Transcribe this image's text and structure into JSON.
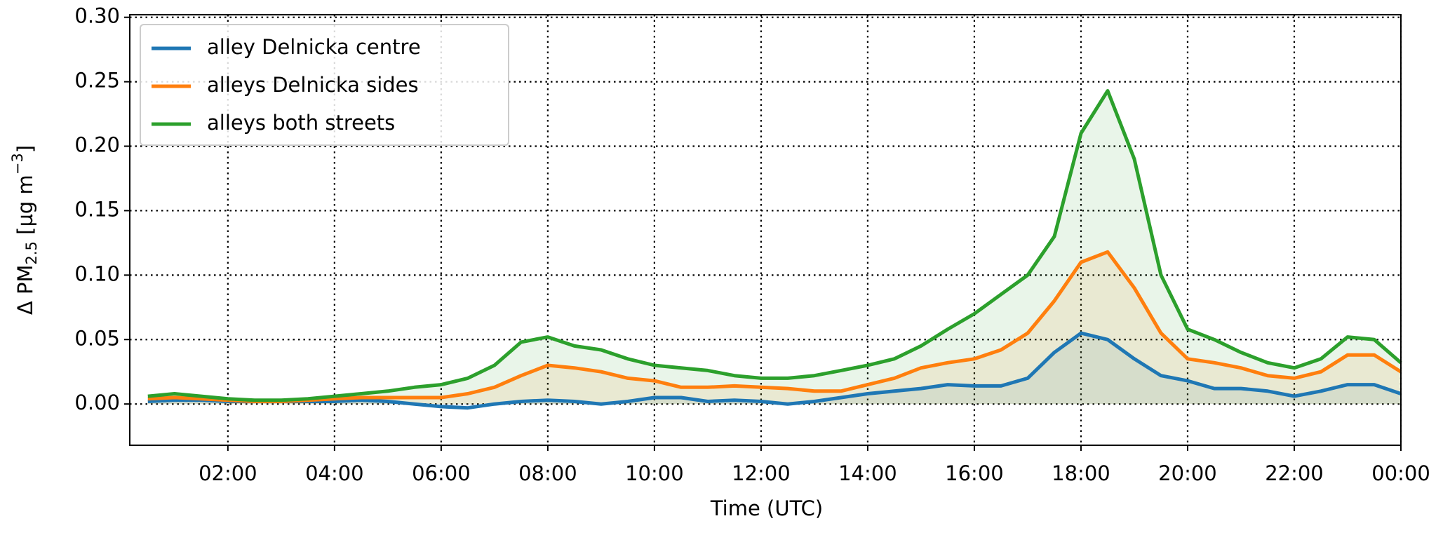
{
  "chart_data": {
    "type": "line",
    "xlabel": "Time (UTC)",
    "ylabel_parts": [
      "Δ PM",
      "2.5",
      " [µg m",
      "−3",
      "]"
    ],
    "x": [
      0.5,
      1,
      1.5,
      2,
      2.5,
      3,
      3.5,
      4,
      4.5,
      5,
      5.5,
      6,
      6.5,
      7,
      7.5,
      8,
      8.5,
      9,
      9.5,
      10,
      10.5,
      11,
      11.5,
      12,
      12.5,
      13,
      13.5,
      14,
      14.5,
      15,
      15.5,
      16,
      16.5,
      17,
      17.5,
      18,
      18.5,
      19,
      19.5,
      20,
      20.5,
      21,
      21.5,
      22,
      22.5,
      23,
      23.5,
      24
    ],
    "series": [
      {
        "name": "alley Delnicka centre",
        "color": "#1f77b4",
        "values": [
          0.002,
          0.003,
          0.003,
          0.002,
          0.002,
          0.002,
          0.002,
          0.002,
          0.003,
          0.002,
          0.0,
          -0.002,
          -0.003,
          0.0,
          0.002,
          0.003,
          0.002,
          0.0,
          0.002,
          0.005,
          0.005,
          0.002,
          0.003,
          0.002,
          0.0,
          0.002,
          0.005,
          0.008,
          0.01,
          0.012,
          0.015,
          0.014,
          0.014,
          0.02,
          0.04,
          0.055,
          0.05,
          0.035,
          0.022,
          0.018,
          0.012,
          0.012,
          0.01,
          0.006,
          0.01,
          0.015,
          0.015,
          0.008
        ]
      },
      {
        "name": "alleys Delnicka sides",
        "color": "#ff7f0e",
        "values": [
          0.004,
          0.005,
          0.004,
          0.003,
          0.002,
          0.002,
          0.003,
          0.004,
          0.005,
          0.005,
          0.005,
          0.005,
          0.008,
          0.013,
          0.022,
          0.03,
          0.028,
          0.025,
          0.02,
          0.018,
          0.013,
          0.013,
          0.014,
          0.013,
          0.012,
          0.01,
          0.01,
          0.015,
          0.02,
          0.028,
          0.032,
          0.035,
          0.042,
          0.055,
          0.08,
          0.11,
          0.118,
          0.09,
          0.055,
          0.035,
          0.032,
          0.028,
          0.022,
          0.02,
          0.025,
          0.038,
          0.038,
          0.025
        ]
      },
      {
        "name": "alleys both streets",
        "color": "#2ca02c",
        "values": [
          0.006,
          0.008,
          0.006,
          0.004,
          0.003,
          0.003,
          0.004,
          0.006,
          0.008,
          0.01,
          0.013,
          0.015,
          0.02,
          0.03,
          0.048,
          0.052,
          0.045,
          0.042,
          0.035,
          0.03,
          0.028,
          0.026,
          0.022,
          0.02,
          0.02,
          0.022,
          0.026,
          0.03,
          0.035,
          0.045,
          0.058,
          0.07,
          0.085,
          0.1,
          0.13,
          0.21,
          0.243,
          0.19,
          0.1,
          0.058,
          0.05,
          0.04,
          0.032,
          0.028,
          0.035,
          0.052,
          0.05,
          0.032
        ]
      }
    ],
    "xlim": [
      0.16,
      24
    ],
    "ylim": [
      -0.032,
      0.302
    ],
    "xticks": [
      {
        "value": 2,
        "label": "02:00"
      },
      {
        "value": 4,
        "label": "04:00"
      },
      {
        "value": 6,
        "label": "06:00"
      },
      {
        "value": 8,
        "label": "08:00"
      },
      {
        "value": 10,
        "label": "10:00"
      },
      {
        "value": 12,
        "label": "12:00"
      },
      {
        "value": 14,
        "label": "14:00"
      },
      {
        "value": 16,
        "label": "16:00"
      },
      {
        "value": 18,
        "label": "18:00"
      },
      {
        "value": 20,
        "label": "20:00"
      },
      {
        "value": 22,
        "label": "22:00"
      },
      {
        "value": 24,
        "label": "00:00"
      }
    ],
    "yticks": [
      {
        "value": 0,
        "label": "0.00"
      },
      {
        "value": 0.05,
        "label": "0.05"
      },
      {
        "value": 0.1,
        "label": "0.10"
      },
      {
        "value": 0.15,
        "label": "0.15"
      },
      {
        "value": 0.2,
        "label": "0.20"
      },
      {
        "value": 0.25,
        "label": "0.25"
      },
      {
        "value": 0.3,
        "label": "0.30"
      }
    ],
    "grid": true,
    "legend": "upper left"
  }
}
